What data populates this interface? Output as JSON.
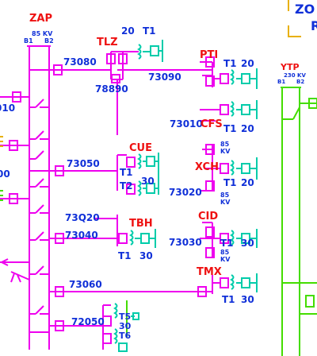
{
  "colors": {
    "bus_magenta": "#ee00ee",
    "bus_green": "#44dd00",
    "transformer_cyan": "#00ccaa",
    "label_blue": "#1030d8",
    "label_red": "#ee1111",
    "zone_yellow": "#e8b000"
  },
  "substations": {
    "zap": {
      "name": "ZAP",
      "kv": "85 KV",
      "bus1": "B1",
      "bus2": "B2"
    },
    "ytp": {
      "name": "YTP",
      "kv": "230 KV",
      "bus1": "B1",
      "bus2": "B2"
    },
    "zone_partial": "ZO",
    "zone_partial_2": "R",
    "tlz": "TLZ",
    "pti": "PTI",
    "cfs": "CFS",
    "cue": "CUE",
    "xch": "XCH",
    "tbh": "TBH",
    "cid": "CID",
    "tmx": "TMX"
  },
  "lines": {
    "l73080": "73080",
    "l73090": "73090",
    "l78890": "78890",
    "l73010": "73010",
    "l73050": "73050",
    "l73020": "73020",
    "l73q20": "73Q20",
    "l73040": "73040",
    "l73030": "73030",
    "l73060": "73060",
    "l72050": "72050"
  },
  "transformers": {
    "tlz_t1": "T1",
    "tlz_20": "20",
    "pti_t1": "T1",
    "pti_20": "20",
    "cfs_t1": "T1",
    "cfs_20": "20",
    "cue_t1": "T1",
    "cue_t2": "T2",
    "cue_30": "30",
    "xch_85": "85",
    "xch_kv": "KV",
    "xch_t1": "T1",
    "xch_20": "20",
    "xch_85b": "85",
    "xch_kvb": "KV",
    "tbh_t1": "T1",
    "tbh_30": "30",
    "cid_t1": "T1",
    "cid_30": "30",
    "cid_85": "85",
    "cid_kv": "KV",
    "tmx_t1": "T1",
    "tmx_30": "30",
    "bot_t5": "T5",
    "bot_30": "30",
    "bot_t6": "T6"
  },
  "left_cut": {
    "a": "010",
    "b": "00"
  }
}
